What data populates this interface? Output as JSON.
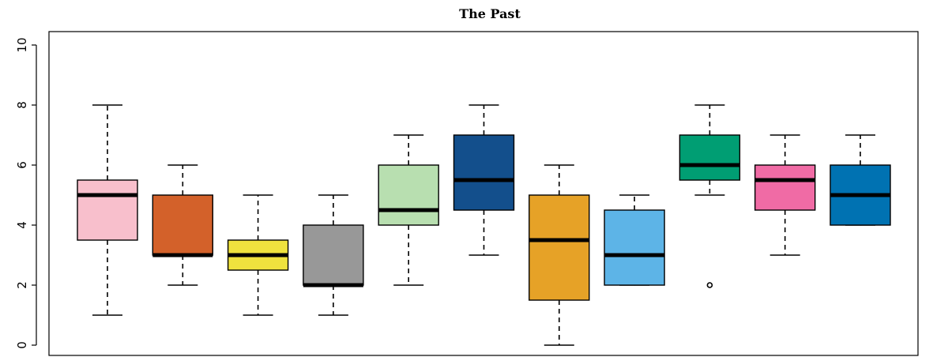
{
  "chart_data": {
    "type": "box",
    "title": "The Past",
    "xlabel": "",
    "ylabel": "",
    "ylim": [
      0,
      10
    ],
    "yticks": [
      0,
      2,
      4,
      6,
      8,
      10
    ],
    "grid": false,
    "legend": "none",
    "boxes": [
      {
        "color": "#F8BFCC",
        "whisker_low": 1,
        "q1": 3.5,
        "median": 5,
        "q3": 5.5,
        "whisker_high": 8,
        "outliers": []
      },
      {
        "color": "#D3612A",
        "whisker_low": 2,
        "q1": 3,
        "median": 3,
        "q3": 5,
        "whisker_high": 6,
        "outliers": []
      },
      {
        "color": "#EFE23E",
        "whisker_low": 1,
        "q1": 2.5,
        "median": 3,
        "q3": 3.5,
        "whisker_high": 5,
        "outliers": []
      },
      {
        "color": "#989898",
        "whisker_low": 1,
        "q1": 2,
        "median": 2,
        "q3": 4,
        "whisker_high": 5,
        "outliers": []
      },
      {
        "color": "#B8DFB0",
        "whisker_low": 2,
        "q1": 4,
        "median": 4.5,
        "q3": 6,
        "whisker_high": 7,
        "outliers": []
      },
      {
        "color": "#134F8C",
        "whisker_low": 3,
        "q1": 4.5,
        "median": 5.5,
        "q3": 7,
        "whisker_high": 8,
        "outliers": []
      },
      {
        "color": "#E6A227",
        "whisker_low": 0,
        "q1": 1.5,
        "median": 3.5,
        "q3": 5,
        "whisker_high": 6,
        "outliers": []
      },
      {
        "color": "#5DB4E7",
        "whisker_low": 2,
        "q1": 2,
        "median": 3,
        "q3": 4.5,
        "whisker_high": 5,
        "outliers": []
      },
      {
        "color": "#009E73",
        "whisker_low": 5,
        "q1": 5.5,
        "median": 6,
        "q3": 7,
        "whisker_high": 8,
        "outliers": [
          2
        ]
      },
      {
        "color": "#F06BA5",
        "whisker_low": 3,
        "q1": 4.5,
        "median": 5.5,
        "q3": 6,
        "whisker_high": 7,
        "outliers": []
      },
      {
        "color": "#0072B2",
        "whisker_low": 4,
        "q1": 4,
        "median": 5,
        "q3": 6,
        "whisker_high": 7,
        "outliers": []
      }
    ]
  }
}
